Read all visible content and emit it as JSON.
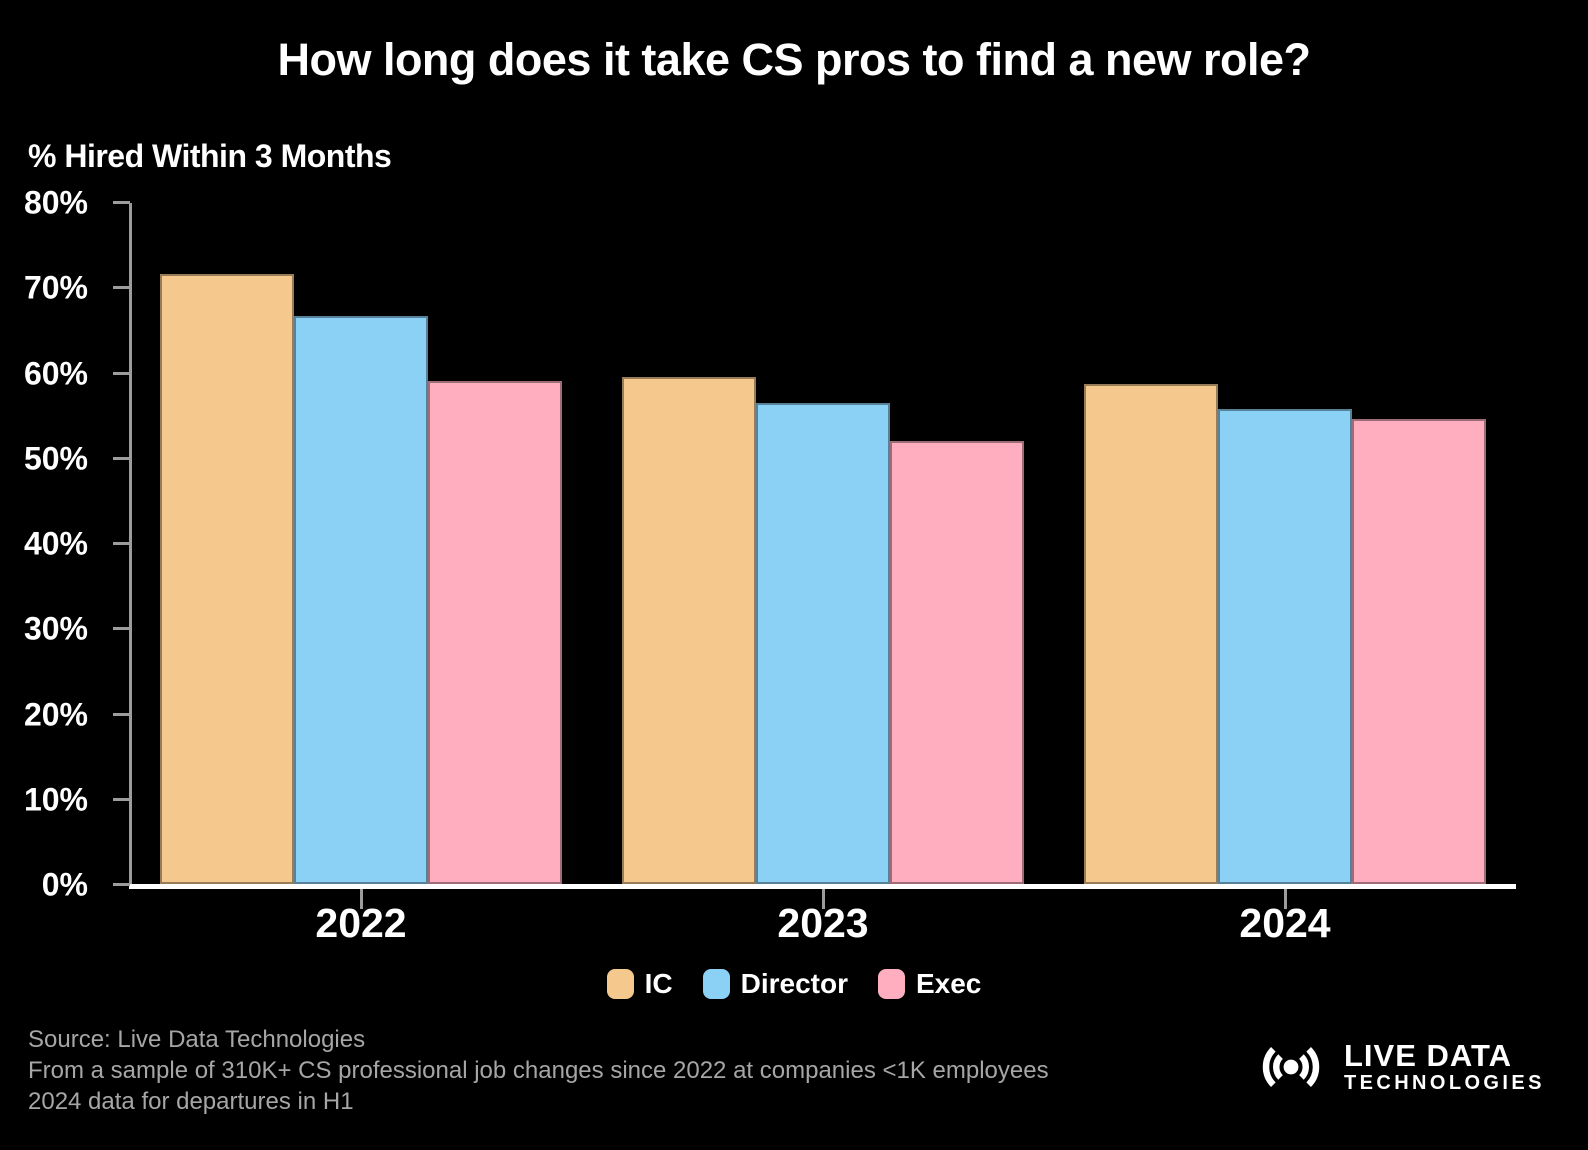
{
  "page": {
    "background": "#000000",
    "text_color": "#ffffff",
    "muted_text_color": "#a6a6a6",
    "axis_color": "#9c9c9c"
  },
  "chart_data": {
    "type": "bar",
    "title": "How long does it take CS pros to find a new role?",
    "ylabel": "% Hired Within 3 Months",
    "xlabel": "",
    "categories": [
      "2022",
      "2023",
      "2024"
    ],
    "series": [
      {
        "name": "IC",
        "color": "#F5C88E",
        "values": [
          71.5,
          59.5,
          58.7
        ]
      },
      {
        "name": "Director",
        "color": "#8BD1F5",
        "values": [
          66.6,
          56.4,
          55.7
        ]
      },
      {
        "name": "Exec",
        "color": "#FFAEBF",
        "values": [
          59.0,
          52.0,
          54.5
        ]
      }
    ],
    "ylim": [
      0,
      80
    ],
    "yticks": [
      {
        "value": 0,
        "label": "0%"
      },
      {
        "value": 10,
        "label": "10%"
      },
      {
        "value": 20,
        "label": "20%"
      },
      {
        "value": 30,
        "label": "30%"
      },
      {
        "value": 40,
        "label": "40%"
      },
      {
        "value": 50,
        "label": "50%"
      },
      {
        "value": 60,
        "label": "60%"
      },
      {
        "value": 70,
        "label": "70%"
      },
      {
        "value": 80,
        "label": "80%"
      }
    ],
    "grid": false,
    "legend_position": "bottom"
  },
  "footer": {
    "lines": [
      "Source: Live Data Technologies",
      "From a sample of 310K+ CS professional job changes since 2022 at companies <1K employees",
      "2024 data for departures in H1"
    ]
  },
  "logo": {
    "icon": "radio-waves-icon",
    "line1": "LIVE DATA",
    "line2": "TECHNOLOGIES"
  }
}
